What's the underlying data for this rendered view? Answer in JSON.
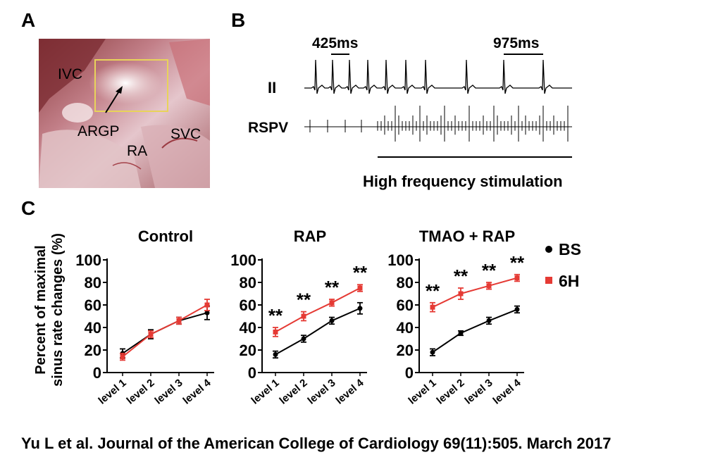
{
  "figure": {
    "panel_labels": [
      "A",
      "B",
      "C"
    ],
    "panel_a": {
      "labels": [
        "IVC",
        "ARGP",
        "RA",
        "SVC"
      ],
      "colors": {
        "tissue_dark": "#7c2a2a",
        "tissue_mid": "#c9868f",
        "tissue_light": "#f3e2e4",
        "roi_box": "#e8d35a"
      }
    },
    "panel_b": {
      "lead_ii_label": "II",
      "rspv_label": "RSPV",
      "interval_1": "425ms",
      "interval_2": "975ms",
      "stim_label": "High frequency stimulation"
    },
    "panel_c": {
      "y_axis_label_line1": "Percent of maximal",
      "y_axis_label_line2": "sinus rate changes (%)",
      "legend": [
        {
          "name": "BS",
          "color": "#000000",
          "marker": "circle"
        },
        {
          "name": "6H",
          "color": "#e53a34",
          "marker": "square"
        }
      ]
    }
  },
  "chart_data": [
    {
      "type": "line",
      "title": "Control",
      "categories": [
        "level 1",
        "level 2",
        "level 3",
        "level 4"
      ],
      "ylim": [
        0,
        100
      ],
      "yticks": [
        0,
        20,
        40,
        60,
        80,
        100
      ],
      "series": [
        {
          "name": "BS",
          "values": [
            17,
            34,
            46,
            53
          ],
          "errors": [
            4,
            4,
            3,
            6
          ]
        },
        {
          "name": "6H",
          "values": [
            14,
            34,
            46,
            60
          ],
          "errors": [
            3,
            3,
            3,
            5
          ]
        }
      ],
      "annotations": []
    },
    {
      "type": "line",
      "title": "RAP",
      "categories": [
        "level 1",
        "level 2",
        "level 3",
        "level 4"
      ],
      "ylim": [
        0,
        100
      ],
      "yticks": [
        0,
        20,
        40,
        60,
        80,
        100
      ],
      "series": [
        {
          "name": "BS",
          "values": [
            16,
            30,
            46,
            57
          ],
          "errors": [
            3,
            3,
            3,
            5
          ]
        },
        {
          "name": "6H",
          "values": [
            36,
            50,
            62,
            75
          ],
          "errors": [
            4,
            4,
            3,
            3
          ]
        }
      ],
      "annotations": [
        "**",
        "**",
        "**",
        "**"
      ]
    },
    {
      "type": "line",
      "title": "TMAO + RAP",
      "categories": [
        "level 1",
        "level 2",
        "level 3",
        "level 4"
      ],
      "ylim": [
        0,
        100
      ],
      "yticks": [
        0,
        20,
        40,
        60,
        80,
        100
      ],
      "series": [
        {
          "name": "BS",
          "values": [
            18,
            35,
            46,
            56
          ],
          "errors": [
            3,
            2,
            3,
            3
          ]
        },
        {
          "name": "6H",
          "values": [
            58,
            70,
            77,
            84
          ],
          "errors": [
            4,
            5,
            3,
            3
          ]
        }
      ],
      "annotations": [
        "**",
        "**",
        "**",
        "**"
      ]
    }
  ],
  "citation": "Yu L et al. Journal of the American College of Cardiology 69(11):505. March 2017"
}
